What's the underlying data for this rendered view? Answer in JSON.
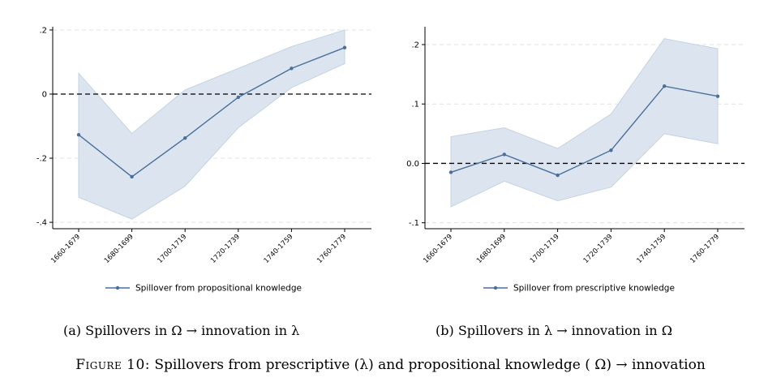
{
  "chart_data": [
    {
      "type": "line",
      "categories": [
        "1660-1679",
        "1680-1699",
        "1700-1719",
        "1720-1739",
        "1740-1759",
        "1760-1779"
      ],
      "series": [
        {
          "name": "Spillover from propositional knowledge",
          "values": [
            -0.127,
            -0.258,
            -0.137,
            -0.01,
            0.08,
            0.145
          ],
          "ci_lower": [
            -0.322,
            -0.39,
            -0.287,
            -0.105,
            0.02,
            0.095
          ],
          "ci_upper": [
            0.065,
            -0.123,
            0.013,
            0.08,
            0.148,
            0.2
          ]
        }
      ],
      "ylim": [
        -0.42,
        0.21
      ],
      "yticks": [
        0.2,
        0,
        -0.2,
        -0.4
      ],
      "ytick_labels": [
        ".2",
        "0",
        "-.2",
        "-.4"
      ],
      "reference_line": 0,
      "legend": "bottom",
      "colors": {
        "line": "#4a6f9a",
        "band": "#dce5ef",
        "band_edge": "#c4d3e3",
        "grid": "#e2e2e2"
      },
      "caption": "(a) Spillovers in Ω → innovation in λ"
    },
    {
      "type": "line",
      "categories": [
        "1660-1679",
        "1680-1699",
        "1700-1719",
        "1720-1739",
        "1740-1759",
        "1760-1779"
      ],
      "series": [
        {
          "name": "Spillover from prescriptive knowledge",
          "values": [
            -0.015,
            0.015,
            -0.02,
            0.022,
            0.13,
            0.113
          ],
          "ci_lower": [
            -0.073,
            -0.03,
            -0.063,
            -0.04,
            0.05,
            0.033
          ],
          "ci_upper": [
            0.045,
            0.06,
            0.025,
            0.083,
            0.21,
            0.193
          ]
        }
      ],
      "ylim": [
        -0.11,
        0.23
      ],
      "yticks": [
        0.2,
        0.1,
        0,
        -0.1
      ],
      "ytick_labels": [
        ".2",
        ".1",
        "0.0",
        "-.1"
      ],
      "reference_line": 0,
      "legend": "bottom",
      "colors": {
        "line": "#4a6f9a",
        "band": "#dce5ef",
        "band_edge": "#c4d3e3",
        "grid": "#e2e2e2"
      },
      "caption": "(b) Spillovers in λ → innovation in Ω"
    }
  ],
  "figure": {
    "label": "Figure 10:",
    "text": "Spillovers from prescriptive (λ) and propositional knowledge ( Ω) → innovation"
  }
}
